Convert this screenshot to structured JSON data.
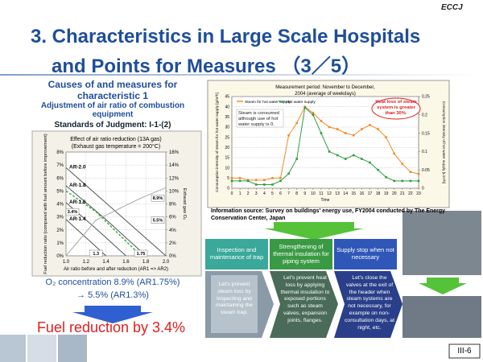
{
  "header": {
    "logo": "ECCJ",
    "title_line1": "3. Characteristics in Large Scale Hospitals",
    "title_line2": "and Points for Measures （3／5）"
  },
  "left": {
    "heading": "Causes of and measures for characteristic 1",
    "subheading": "Adjustment of air ratio of combustion equipment",
    "standard": "Standards of Judgment: I-1-(2)",
    "result_line1": "O₂ concentration 8.9% (AR1.75%)",
    "result_line2": "→  5.5% (AR1.3%)",
    "conclusion": "Fuel reduction by 3.4%"
  },
  "chart_data": [
    {
      "type": "line",
      "title": "Effect of air ratio reduction (13A gas)",
      "subtitle": "(Exhaust gas temperature = 200°C)",
      "x_label": "Air ratio before and after reduction (AR1 => AR2)",
      "y_label": "Fuel reduction ratio (compared with fuel amount before improvement)",
      "y2_label": "Exhaust gas O₂",
      "xlim": [
        1,
        2
      ],
      "xticks": [
        {
          "value": 1,
          "label": "1.0"
        },
        1.2,
        1.4,
        1.6,
        1.8,
        {
          "value": 2,
          "label": "2.0"
        }
      ],
      "ylim": [
        0,
        8
      ],
      "yticks": [
        {
          "value": 0,
          "label": "0%"
        },
        {
          "value": 1,
          "label": "1%"
        },
        {
          "value": 2,
          "label": "2%"
        },
        {
          "value": 3,
          "label": "3%"
        },
        {
          "value": 4,
          "label": "4%"
        },
        {
          "value": 5,
          "label": "5%"
        },
        {
          "value": 6,
          "label": "6%"
        },
        {
          "value": 7,
          "label": "7%"
        },
        {
          "value": 8,
          "label": "8%"
        }
      ],
      "y2lim": [
        0,
        16
      ],
      "y2ticks": [
        {
          "value": 0,
          "label": "0%"
        },
        {
          "value": 2,
          "label": "2%"
        },
        {
          "value": 4,
          "label": "4%"
        },
        {
          "value": 6,
          "label": "6%"
        },
        {
          "value": 8,
          "label": "8%"
        },
        {
          "value": 10,
          "label": "10%"
        },
        {
          "value": 12,
          "label": "12%"
        },
        {
          "value": 14,
          "label": "14%"
        },
        {
          "value": 16,
          "label": "16%"
        }
      ],
      "grid": true,
      "series": [
        {
          "name": "AR-2.0",
          "color": "#555555",
          "x": [
            1,
            1.5,
            2
          ],
          "values": [
            6.8,
            3.4,
            0
          ]
        },
        {
          "name": "AR-1.8",
          "color": "#555555",
          "x": [
            1,
            1.4,
            1.8
          ],
          "values": [
            5.4,
            2.8,
            0
          ]
        },
        {
          "name": "AR-1.6",
          "color": "#555555",
          "x": [
            1,
            1.3,
            1.6
          ],
          "values": [
            4.1,
            2.1,
            0
          ]
        },
        {
          "name": "AR-1.4",
          "color": "#555555",
          "x": [
            1,
            1.2,
            1.4
          ],
          "values": [
            2.8,
            1.4,
            0
          ]
        },
        {
          "color": "#3aa845",
          "dash": true,
          "x": [
            1,
            1.3,
            1.75
          ],
          "values": [
            5.0,
            3.4,
            0
          ]
        },
        {
          "color": "#aaaaaa",
          "axis": "y2",
          "x": [
            1,
            1.3,
            1.75,
            2
          ],
          "values": [
            0,
            5.5,
            8.9,
            10.5
          ]
        }
      ],
      "annotations": [
        {
          "label": "3.4%",
          "value": 3.4,
          "axis": "y"
        },
        {
          "label": "8.9%",
          "value": 8.9,
          "axis": "y2"
        },
        {
          "label": "5.5%",
          "value": 5.5,
          "axis": "y2"
        },
        {
          "label": "1.75",
          "value": 1.75,
          "axis": "x"
        },
        {
          "label": "1.3",
          "value": 1.3,
          "axis": "x"
        }
      ]
    },
    {
      "type": "line",
      "title": "Measurement period: November to December,",
      "subtitle": "2004 (average of weekdays)",
      "x_label": "Time",
      "y_label": "Consumption intensity of steam for hot water supply [g/m²h]",
      "y2_label": "Consumption intensity of hot water supply [L/m²h]",
      "x": [
        0,
        1,
        2,
        3,
        4,
        5,
        6,
        7,
        8,
        9,
        10,
        11,
        12,
        13,
        14,
        15,
        16,
        17,
        18,
        19,
        20,
        21,
        22,
        23
      ],
      "xlim": [
        0,
        23
      ],
      "xticks": [
        0,
        1,
        2,
        3,
        4,
        5,
        6,
        7,
        8,
        9,
        10,
        11,
        12,
        13,
        14,
        15,
        16,
        17,
        18,
        19,
        20,
        21,
        22,
        23
      ],
      "ylim": [
        0,
        45
      ],
      "yticks": [
        0,
        5,
        10,
        15,
        20,
        25,
        30,
        35,
        40,
        45
      ],
      "y2lim": [
        0,
        0.25
      ],
      "y2ticks": [
        0,
        0.05,
        0.1,
        0.15,
        0.2,
        0.25
      ],
      "grid": true,
      "markers": true,
      "series": [
        {
          "name": "Steam for hot water supply",
          "color": "#f08a24",
          "values": [
            5,
            5,
            4,
            4,
            4,
            5,
            5,
            26,
            32,
            40,
            37,
            33,
            30,
            29,
            27,
            26,
            29,
            31,
            29,
            25,
            17,
            12,
            8,
            7
          ]
        },
        {
          "name": "Hot water supply",
          "color": "#2e9e3e",
          "axis": "y2",
          "values": [
            0.02,
            0.02,
            0.02,
            0.01,
            0.01,
            0.01,
            0.02,
            0.04,
            0.08,
            0.22,
            0.2,
            0.15,
            0.1,
            0.09,
            0.08,
            0.09,
            0.08,
            0.07,
            0.05,
            0.03,
            0.02,
            0.02,
            0.02,
            0.02
          ]
        }
      ],
      "notes": [
        {
          "lines": [
            "Steam is consumed",
            "although use of hot",
            "water supply is 0."
          ]
        },
        {
          "lines": [
            "Heat loss of steam",
            "system is greater",
            "than 30%."
          ]
        }
      ]
    }
  ],
  "source": "Information source: Survey on buildings' energy use, FY2004 conducted by The Energy Conservation Center, Japan",
  "measures": [
    {
      "heading": "Inspection and maintenance of trap",
      "body": "Let's prevent steam loss by inspecting and maintaining the steam trap."
    },
    {
      "heading": "Strengthening of thermal insulation for piping system",
      "body": "Let's prevent heat loss by applying thermal insulation to exposed portions such as steam valves, expansion joints, flanges."
    },
    {
      "heading": "Supply stop when not necessary",
      "body": "Let's close the valves at the exit of the header when steam systems are not necessary, for example on non-consultation days, at night, etc."
    }
  ],
  "page_number": "III-6"
}
